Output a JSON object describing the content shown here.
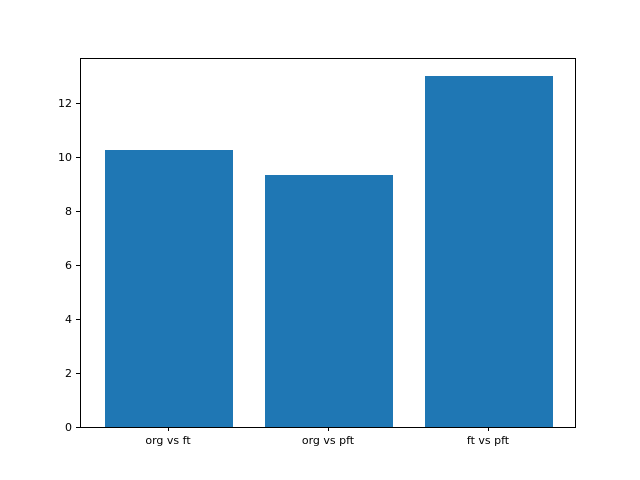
{
  "figure": {
    "background": "#ffffff",
    "text_color": "#000000"
  },
  "chart_data": {
    "type": "bar",
    "title": "",
    "xlabel": "",
    "ylabel": "",
    "categories": [
      "org vs ft",
      "org vs pft",
      "ft vs pft"
    ],
    "values": [
      10.26,
      9.36,
      13.04
    ],
    "bar_color": "#1f77b4",
    "yticks": [
      0,
      2,
      4,
      6,
      8,
      10,
      12
    ],
    "ylim": [
      0,
      13.69
    ],
    "xlim": [
      -0.55,
      2.55
    ],
    "bar_width": 0.8,
    "grid": false,
    "legend_position": "none"
  }
}
